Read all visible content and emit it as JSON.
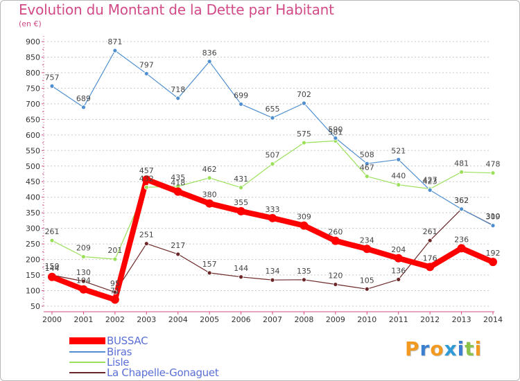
{
  "chart_data": {
    "type": "line",
    "title": "Evolution du Montant de la Dette par Habitant",
    "subtitle": "(en €)",
    "xlabel": "",
    "ylabel": "",
    "x": [
      "2000",
      "2001",
      "2002",
      "2003",
      "2004",
      "2005",
      "2006",
      "2007",
      "2008",
      "2009",
      "2010",
      "2011",
      "2012",
      "2013",
      "2014"
    ],
    "ylim": [
      50,
      900
    ],
    "yticks": [
      50,
      100,
      150,
      200,
      250,
      300,
      350,
      400,
      450,
      500,
      550,
      600,
      650,
      700,
      750,
      800,
      850,
      900
    ],
    "grid": "y-dashed",
    "legend_position": "bottom-left",
    "series": [
      {
        "name": "BUSSAC",
        "color": "#ff0000",
        "values": [
          144,
          104,
          71,
          457,
          418,
          380,
          355,
          333,
          309,
          260,
          234,
          204,
          176,
          236,
          192
        ]
      },
      {
        "name": "Biras",
        "color": "#4f8fd0",
        "values": [
          757,
          689,
          871,
          797,
          718,
          836,
          699,
          655,
          702,
          590,
          508,
          521,
          423,
          362,
          309
        ]
      },
      {
        "name": "Lisle",
        "color": "#9be05a",
        "values": [
          261,
          209,
          201,
          432,
          435,
          462,
          431,
          507,
          575,
          581,
          467,
          440,
          427,
          481,
          478
        ]
      },
      {
        "name": "La Chapelle-Gonaguet",
        "color": "#6b2727",
        "values": [
          150,
          130,
          95,
          251,
          217,
          157,
          144,
          134,
          135,
          120,
          105,
          136,
          261,
          362,
          310
        ]
      }
    ]
  },
  "legend": {
    "items": [
      {
        "label": "BUSSAC",
        "color": "#ff0000"
      },
      {
        "label": "Biras",
        "color": "#4f8fd0"
      },
      {
        "label": "Lisle",
        "color": "#9be05a"
      },
      {
        "label": "La Chapelle-Gonaguet",
        "color": "#6b2727"
      }
    ]
  },
  "logo": {
    "text": "Proxiti"
  }
}
